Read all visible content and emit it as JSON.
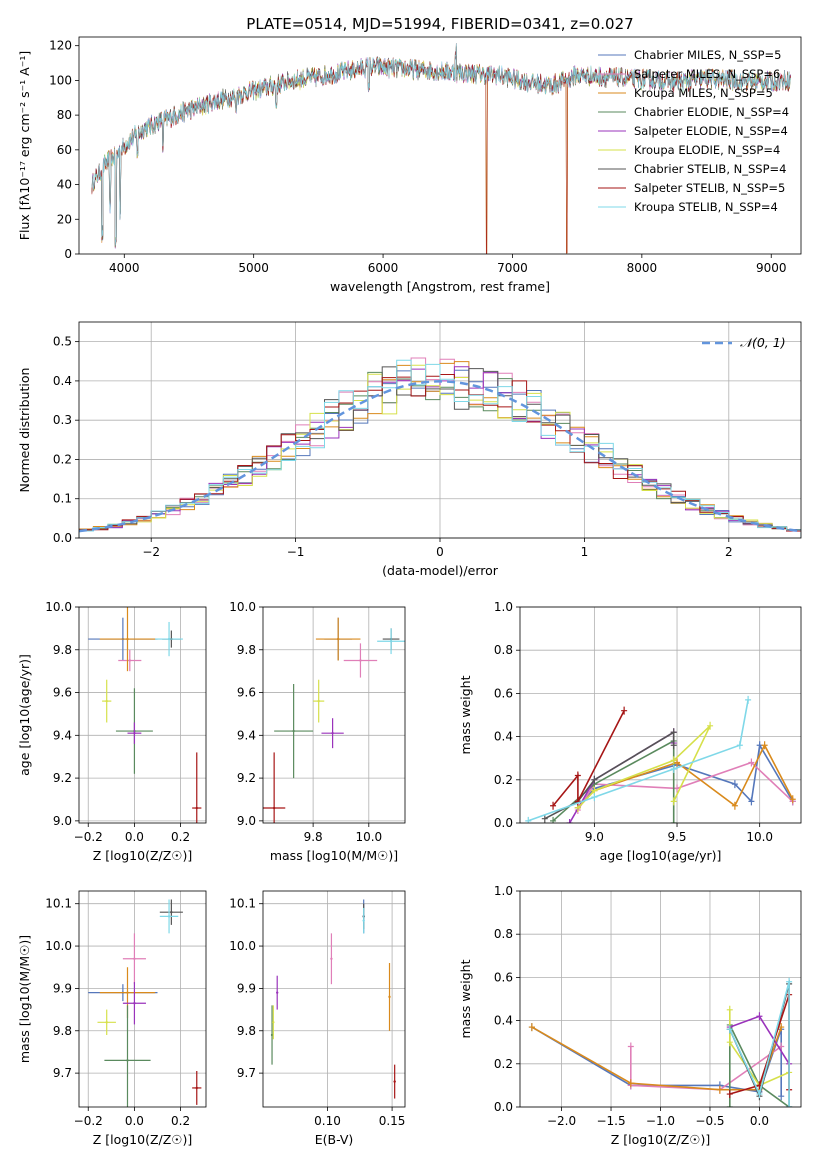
{
  "figure": {
    "title": "PLATE=0514, MJD=51994, FIBERID=0341, z=0.027"
  },
  "colors": {
    "Chabrier MILES": "#5577bb",
    "Salpeter MILES": "#e07fb8",
    "Kroupa MILES": "#d98a1c",
    "Chabrier ELODIE": "#5a8a5e",
    "Salpeter ELODIE": "#9a33bb",
    "Kroupa ELODIE": "#d6e04a",
    "Chabrier STELIB": "#555555",
    "Salpeter STELIB": "#a61616",
    "Kroupa STELIB": "#7fd8e8",
    "normal": "#6295dd",
    "grid": "#b0b0b0"
  },
  "chart_data": [
    {
      "type": "line",
      "panel": "spectrum",
      "title": "PLATE=0514, MJD=51994, FIBERID=0341, z=0.027",
      "xlabel": "wavelength [Angstrom, rest frame]",
      "ylabel": "Flux [fλ10⁻¹⁷ erg cm⁻² s⁻¹ A⁻¹]",
      "xlim": [
        3650,
        9230
      ],
      "ylim": [
        0,
        125
      ],
      "xticks": [
        "4000",
        "5000",
        "6000",
        "7000",
        "8000",
        "9000"
      ],
      "yticks": [
        "0",
        "20",
        "40",
        "60",
        "80",
        "100",
        "120"
      ],
      "grid": false,
      "legend_position": "right",
      "continuum": {
        "x": [
          3750,
          3850,
          3950,
          4050,
          4150,
          4300,
          4500,
          4700,
          4900,
          5100,
          5300,
          5500,
          5700,
          5900,
          6100,
          6300,
          6500,
          6700,
          6900,
          7100,
          7300,
          7500,
          7700,
          7900,
          8100,
          8300,
          8500,
          8700,
          8900,
          9100
        ],
        "y": [
          40,
          52,
          58,
          66,
          72,
          77,
          83,
          88,
          92,
          96,
          100,
          102,
          105,
          108,
          107,
          106,
          105,
          104,
          103,
          99,
          97,
          103,
          102,
          101,
          100,
          99,
          101,
          100,
          99,
          100
        ]
      },
      "features": [
        {
          "x": 3830,
          "depth": 38
        },
        {
          "x": 3890,
          "depth": 25
        },
        {
          "x": 3933,
          "depth": 50
        },
        {
          "x": 3968,
          "depth": 35
        },
        {
          "x": 4101,
          "depth": 10
        },
        {
          "x": 4300,
          "depth": 15
        },
        {
          "x": 4861,
          "depth": 6
        },
        {
          "x": 5175,
          "depth": 12
        },
        {
          "x": 5890,
          "depth": 10
        },
        {
          "x": 6563,
          "depth": -12
        },
        {
          "x": 6800,
          "depth": 104
        },
        {
          "x": 7420,
          "depth": 100
        }
      ],
      "series": [
        {
          "name": "Chabrier MILES, N_SSP=5"
        },
        {
          "name": "Salpeter MILES, N_SSP=6"
        },
        {
          "name": "Kroupa MILES, N_SSP=5"
        },
        {
          "name": "Chabrier ELODIE, N_SSP=4"
        },
        {
          "name": "Salpeter ELODIE, N_SSP=4"
        },
        {
          "name": "Kroupa ELODIE, N_SSP=4"
        },
        {
          "name": "Chabrier STELIB, N_SSP=4"
        },
        {
          "name": "Salpeter STELIB, N_SSP=5"
        },
        {
          "name": "Kroupa STELIB, N_SSP=4"
        }
      ]
    },
    {
      "type": "histogram",
      "panel": "residuals",
      "xlabel": "(data-model)/error",
      "ylabel": "Normed distribution",
      "xlim": [
        -2.5,
        2.5
      ],
      "ylim": [
        0,
        0.55
      ],
      "xticks": [
        "−2",
        "−1",
        "0",
        "1",
        "2"
      ],
      "yticks": [
        "0.0",
        "0.1",
        "0.2",
        "0.3",
        "0.4",
        "0.5"
      ],
      "grid": true,
      "bin_width": 0.1,
      "legend": "𝒩(0, 1)",
      "legend_position": "top-right",
      "reference_curve": "normal(0,1)"
    },
    {
      "type": "errorbar",
      "panel": "age-vs-Z",
      "xlabel": "Z [log10(Z/Z☉)]",
      "ylabel": "age  [log10(age/yr)]",
      "xlim": [
        -0.24,
        0.31
      ],
      "ylim": [
        8.99,
        10.0
      ],
      "xticks": [
        "−0.2",
        "0.0",
        "0.2"
      ],
      "yticks": [
        "9.0",
        "9.2",
        "9.4",
        "9.6",
        "9.8",
        "10.0"
      ],
      "grid": true,
      "points": [
        {
          "series": "Chabrier MILES",
          "x": -0.05,
          "y": 9.85,
          "xerr": 0.15,
          "yerr": 0.1
        },
        {
          "series": "Salpeter MILES",
          "x": -0.02,
          "y": 9.75,
          "xerr": 0.05,
          "yerr": 0.05
        },
        {
          "series": "Kroupa MILES",
          "x": -0.03,
          "y": 9.85,
          "xerr": 0.12,
          "yerr": 0.15
        },
        {
          "series": "Chabrier ELODIE",
          "x": 0.0,
          "y": 9.42,
          "xerr": 0.08,
          "yerr": 0.2
        },
        {
          "series": "Salpeter ELODIE",
          "x": 0.0,
          "y": 9.41,
          "xerr": 0.03,
          "yerr": 0.05
        },
        {
          "series": "Kroupa ELODIE",
          "x": -0.12,
          "y": 9.56,
          "xerr": 0.02,
          "yerr": 0.1
        },
        {
          "series": "Chabrier STELIB",
          "x": 0.16,
          "y": 9.85,
          "xerr": 0.04,
          "yerr": 0.04
        },
        {
          "series": "Salpeter STELIB",
          "x": 0.27,
          "y": 9.06,
          "xerr": 0.02,
          "yerr": 0.26
        },
        {
          "series": "Kroupa STELIB",
          "x": 0.15,
          "y": 9.85,
          "xerr": 0.06,
          "yerr": 0.08
        }
      ]
    },
    {
      "type": "errorbar",
      "panel": "age-vs-mass",
      "xlabel": "mass [log10(M/M☉)]",
      "ylabel": "",
      "xlim": [
        9.62,
        10.13
      ],
      "ylim": [
        8.99,
        10.0
      ],
      "xticks": [
        "9.8",
        "10.0"
      ],
      "yticks": [
        "9.0",
        "9.2",
        "9.4",
        "9.6",
        "9.8",
        "10.0"
      ],
      "grid": true,
      "points": [
        {
          "series": "Chabrier MILES",
          "x": 9.89,
          "y": 9.85,
          "xerr": 0.05,
          "yerr": 0.1
        },
        {
          "series": "Salpeter MILES",
          "x": 9.97,
          "y": 9.75,
          "xerr": 0.06,
          "yerr": 0.08
        },
        {
          "series": "Kroupa MILES",
          "x": 9.89,
          "y": 9.85,
          "xerr": 0.08,
          "yerr": 0.1
        },
        {
          "series": "Chabrier ELODIE",
          "x": 9.73,
          "y": 9.42,
          "xerr": 0.07,
          "yerr": 0.22
        },
        {
          "series": "Salpeter ELODIE",
          "x": 9.87,
          "y": 9.41,
          "xerr": 0.04,
          "yerr": 0.07
        },
        {
          "series": "Kroupa ELODIE",
          "x": 9.82,
          "y": 9.56,
          "xerr": 0.02,
          "yerr": 0.1
        },
        {
          "series": "Chabrier STELIB",
          "x": 10.08,
          "y": 9.85,
          "xerr": 0.03,
          "yerr": 0.05
        },
        {
          "series": "Salpeter STELIB",
          "x": 9.66,
          "y": 9.06,
          "xerr": 0.04,
          "yerr": 0.26
        },
        {
          "series": "Kroupa STELIB",
          "x": 10.08,
          "y": 9.84,
          "xerr": 0.05,
          "yerr": 0.06
        }
      ]
    },
    {
      "type": "line",
      "panel": "mass-weight-vs-age",
      "xlabel": "age  [log10(age/yr)]",
      "ylabel": "mass weight",
      "xlim": [
        8.55,
        10.25
      ],
      "ylim": [
        0,
        1.0
      ],
      "xticks": [
        "9.0",
        "9.5",
        "10.0"
      ],
      "yticks": [
        "0.0",
        "0.2",
        "0.4",
        "0.6",
        "0.8",
        "1.0"
      ],
      "grid": true,
      "series": [
        {
          "series": "Chabrier MILES",
          "points": [
            [
              8.9,
              0.07
            ],
            [
              9.0,
              0.16
            ],
            [
              9.5,
              0.27
            ],
            [
              9.85,
              0.18
            ],
            [
              9.95,
              0.1
            ],
            [
              10.0,
              0.36
            ],
            [
              10.2,
              0.1
            ]
          ]
        },
        {
          "series": "Salpeter MILES",
          "points": [
            [
              8.9,
              0.06
            ],
            [
              9.0,
              0.18
            ],
            [
              9.5,
              0.16
            ],
            [
              9.95,
              0.28
            ],
            [
              10.2,
              0.1
            ]
          ]
        },
        {
          "series": "Kroupa MILES",
          "points": [
            [
              8.9,
              0.07
            ],
            [
              9.0,
              0.15
            ],
            [
              9.5,
              0.28
            ],
            [
              9.85,
              0.08
            ],
            [
              10.03,
              0.36
            ],
            [
              10.2,
              0.11
            ]
          ]
        },
        {
          "series": "Chabrier ELODIE",
          "points": [
            [
              8.75,
              0.01
            ],
            [
              9.0,
              0.18
            ],
            [
              9.48,
              0.38
            ],
            [
              9.48,
              0.0
            ]
          ]
        },
        {
          "series": "Salpeter ELODIE",
          "points": [
            [
              8.85,
              0.0
            ],
            [
              9.0,
              0.2
            ],
            [
              9.48,
              0.42
            ],
            [
              9.48,
              0.37
            ]
          ]
        },
        {
          "series": "Kroupa ELODIE",
          "points": [
            [
              8.9,
              0.07
            ],
            [
              9.0,
              0.15
            ],
            [
              9.48,
              0.29
            ],
            [
              9.7,
              0.45
            ],
            [
              9.48,
              0.1
            ]
          ]
        },
        {
          "series": "Chabrier STELIB",
          "points": [
            [
              8.7,
              0.02
            ],
            [
              8.9,
              0.1
            ],
            [
              9.0,
              0.2
            ],
            [
              9.48,
              0.42
            ],
            [
              9.48,
              0.36
            ]
          ]
        },
        {
          "series": "Salpeter STELIB",
          "points": [
            [
              8.75,
              0.08
            ],
            [
              8.9,
              0.22
            ],
            [
              8.9,
              0.1
            ],
            [
              9.18,
              0.52
            ]
          ]
        },
        {
          "series": "Kroupa STELIB",
          "points": [
            [
              8.6,
              0.01
            ],
            [
              9.0,
              0.12
            ],
            [
              9.48,
              0.25
            ],
            [
              9.88,
              0.36
            ],
            [
              9.93,
              0.57
            ]
          ]
        }
      ]
    },
    {
      "type": "errorbar",
      "panel": "mass-vs-Z",
      "xlabel": "Z [log10(Z/Z☉)]",
      "ylabel": "mass [log10(M/M☉)]",
      "xlim": [
        -0.24,
        0.31
      ],
      "ylim": [
        9.62,
        10.13
      ],
      "xticks": [
        "−0.2",
        "0.0",
        "0.2"
      ],
      "yticks": [
        "9.7",
        "9.8",
        "9.9",
        "10.0",
        "10.1"
      ],
      "grid": true,
      "points": [
        {
          "series": "Chabrier MILES",
          "x": -0.05,
          "y": 9.89,
          "xerr": 0.15,
          "yerr": 0.02
        },
        {
          "series": "Salpeter MILES",
          "x": 0.0,
          "y": 9.97,
          "xerr": 0.05,
          "yerr": 0.06
        },
        {
          "series": "Kroupa MILES",
          "x": -0.03,
          "y": 9.89,
          "xerr": 0.12,
          "yerr": 0.06
        },
        {
          "series": "Chabrier ELODIE",
          "x": -0.03,
          "y": 9.73,
          "xerr": 0.1,
          "yerr": 0.13
        },
        {
          "series": "Salpeter ELODIE",
          "x": 0.0,
          "y": 9.865,
          "xerr": 0.05,
          "yerr": 0.05
        },
        {
          "series": "Kroupa ELODIE",
          "x": -0.12,
          "y": 9.82,
          "xerr": 0.04,
          "yerr": 0.03
        },
        {
          "series": "Chabrier STELIB",
          "x": 0.16,
          "y": 10.08,
          "xerr": 0.05,
          "yerr": 0.03
        },
        {
          "series": "Salpeter STELIB",
          "x": 0.27,
          "y": 9.665,
          "xerr": 0.02,
          "yerr": 0.04
        },
        {
          "series": "Kroupa STELIB",
          "x": 0.15,
          "y": 10.07,
          "xerr": 0.04,
          "yerr": 0.04
        }
      ]
    },
    {
      "type": "errorbar",
      "panel": "mass-vs-EBV",
      "xlabel": "E(B-V)",
      "ylabel": "",
      "xlim": [
        0.05,
        0.16
      ],
      "ylim": [
        9.62,
        10.13
      ],
      "xticks": [
        "0.10",
        "0.15"
      ],
      "yticks": [
        "9.7",
        "9.8",
        "9.9",
        "10.0",
        "10.1"
      ],
      "grid": true,
      "points": [
        {
          "series": "Chabrier MILES",
          "x": 0.128,
          "y": 10.07,
          "xerr": 0,
          "yerr": 0.04
        },
        {
          "series": "Salpeter MILES",
          "x": 0.103,
          "y": 9.97,
          "xerr": 0,
          "yerr": 0.06
        },
        {
          "series": "Kroupa MILES",
          "x": 0.148,
          "y": 9.88,
          "xerr": 0,
          "yerr": 0.08
        },
        {
          "series": "Chabrier ELODIE",
          "x": 0.057,
          "y": 9.79,
          "xerr": 0,
          "yerr": 0.07
        },
        {
          "series": "Salpeter ELODIE",
          "x": 0.061,
          "y": 9.89,
          "xerr": 0,
          "yerr": 0.04
        },
        {
          "series": "Kroupa ELODIE",
          "x": 0.058,
          "y": 9.82,
          "xerr": 0,
          "yerr": 0.04
        },
        {
          "series": "Chabrier STELIB",
          "x": 0.128,
          "y": 10.07,
          "xerr": 0,
          "yerr": 0.03
        },
        {
          "series": "Salpeter STELIB",
          "x": 0.152,
          "y": 9.68,
          "xerr": 0,
          "yerr": 0.04
        },
        {
          "series": "Kroupa STELIB",
          "x": 0.128,
          "y": 10.06,
          "xerr": 0,
          "yerr": 0.03
        }
      ]
    },
    {
      "type": "line",
      "panel": "mass-weight-vs-Z",
      "xlabel": "Z [log10(Z/Z☉)]",
      "ylabel": "mass weight",
      "xlim": [
        -2.42,
        0.42
      ],
      "ylim": [
        0,
        1.0
      ],
      "xticks": [
        "−2.0",
        "−1.5",
        "−1.0",
        "−0.5",
        "0.0"
      ],
      "yticks": [
        "0.0",
        "0.2",
        "0.4",
        "0.6",
        "0.8",
        "1.0"
      ],
      "grid": true,
      "series": [
        {
          "series": "Chabrier MILES",
          "points": [
            [
              -2.3,
              0.37
            ],
            [
              -1.3,
              0.1
            ],
            [
              -0.4,
              0.1
            ],
            [
              0.0,
              0.07
            ],
            [
              0.22,
              0.36
            ],
            [
              0.22,
              0.05
            ]
          ]
        },
        {
          "series": "Salpeter MILES",
          "points": [
            [
              -1.3,
              0.28
            ],
            [
              -1.3,
              0.1
            ],
            [
              -0.4,
              0.08
            ],
            [
              0.22,
              0.28
            ]
          ]
        },
        {
          "series": "Kroupa MILES",
          "points": [
            [
              -2.3,
              0.37
            ],
            [
              -1.3,
              0.11
            ],
            [
              -0.4,
              0.08
            ],
            [
              0.0,
              0.08
            ],
            [
              0.22,
              0.37
            ]
          ]
        },
        {
          "series": "Chabrier ELODIE",
          "points": [
            [
              -0.3,
              0.0
            ],
            [
              -0.3,
              0.38
            ],
            [
              0.0,
              0.1
            ],
            [
              0.3,
              0.0
            ]
          ]
        },
        {
          "series": "Salpeter ELODIE",
          "points": [
            [
              -0.3,
              0.37
            ],
            [
              0.0,
              0.42
            ],
            [
              0.3,
              0.2
            ]
          ]
        },
        {
          "series": "Kroupa ELODIE",
          "points": [
            [
              -0.3,
              0.45
            ],
            [
              -0.3,
              0.3
            ],
            [
              0.0,
              0.1
            ],
            [
              0.3,
              0.16
            ]
          ]
        },
        {
          "series": "Chabrier STELIB",
          "points": [
            [
              -0.3,
              0.36
            ],
            [
              0.0,
              0.05
            ],
            [
              0.3,
              0.57
            ],
            [
              0.3,
              0.0
            ]
          ]
        },
        {
          "series": "Salpeter STELIB",
          "points": [
            [
              -0.3,
              0.06
            ],
            [
              0.0,
              0.1
            ],
            [
              0.3,
              0.52
            ],
            [
              0.3,
              0.08
            ]
          ]
        },
        {
          "series": "Kroupa STELIB",
          "points": [
            [
              -0.3,
              0.36
            ],
            [
              0.0,
              0.06
            ],
            [
              0.3,
              0.58
            ],
            [
              0.3,
              0.0
            ]
          ]
        }
      ]
    }
  ]
}
